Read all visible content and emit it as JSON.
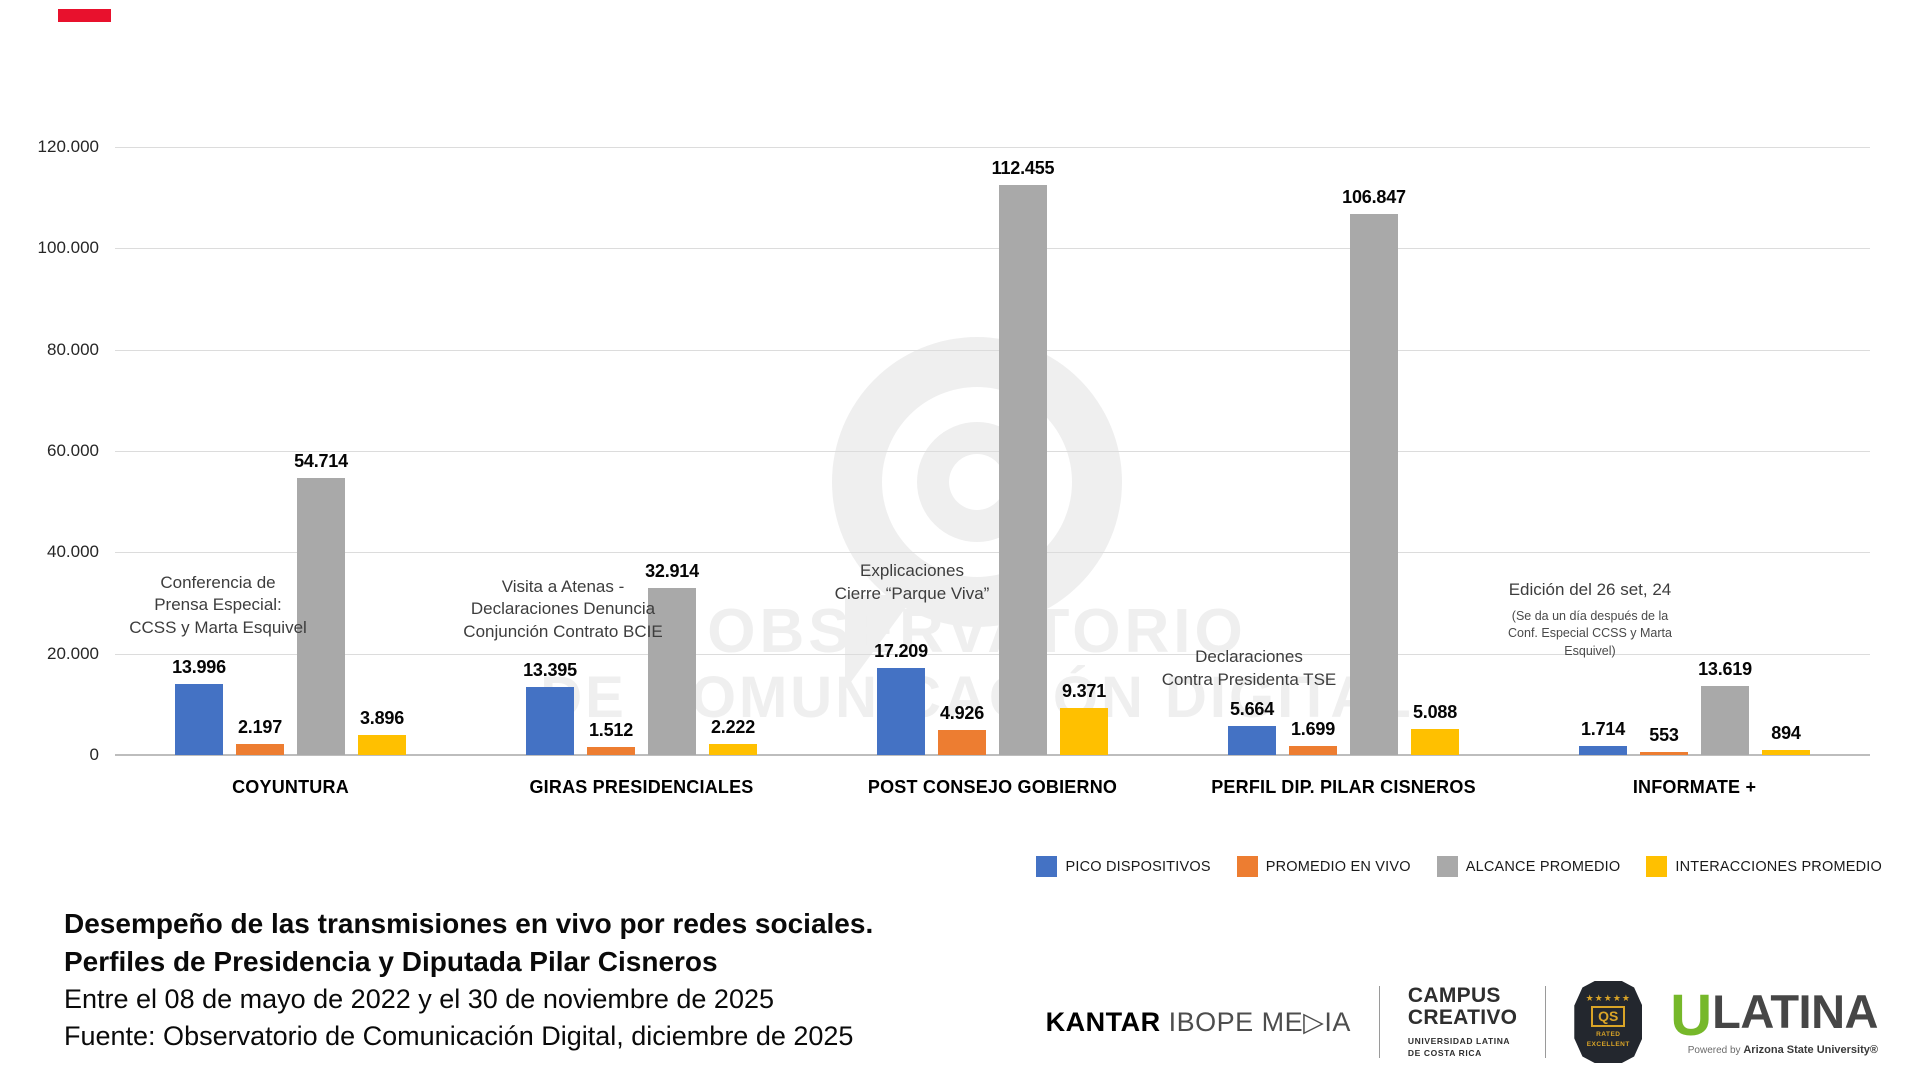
{
  "accent": {
    "marker_color": "#E8112D"
  },
  "chart_data": {
    "type": "bar",
    "categories": [
      "COYUNTURA",
      "GIRAS PRESIDENCIALES",
      "POST CONSEJO GOBIERNO",
      "PERFIL DIP. PILAR CISNEROS",
      "INFORMATE +"
    ],
    "series": [
      {
        "name": "PICO DISPOSITIVOS",
        "color": "#4472C4",
        "values": [
          13996,
          13395,
          17209,
          5664,
          1714
        ]
      },
      {
        "name": "PROMEDIO EN VIVO",
        "color": "#ED7D31",
        "values": [
          2197,
          1512,
          4926,
          1699,
          553
        ]
      },
      {
        "name": "ALCANCE PROMEDIO",
        "color": "#A9A9A9",
        "values": [
          54714,
          32914,
          112455,
          106847,
          13619
        ]
      },
      {
        "name": "INTERACCIONES PROMEDIO",
        "color": "#FFC000",
        "values": [
          3896,
          2222,
          9371,
          5088,
          894
        ]
      }
    ],
    "value_labels": [
      "13.996",
      "2.197",
      "54.714",
      "3.896",
      "13.395",
      "1.512",
      "32.914",
      "2.222",
      "17.209",
      "4.926",
      "112.455",
      "9.371",
      "5.664",
      "1.699",
      "106.847",
      "5.088",
      "1.714",
      "553",
      "13.619",
      "894"
    ],
    "ylim": [
      0,
      120000
    ],
    "ytick_step": 20000,
    "ytick_labels": [
      "0",
      "20.000",
      "40.000",
      "60.000",
      "80.000",
      "100.000",
      "120.000"
    ],
    "grid": true,
    "legend_position": "bottom-right",
    "annotations": [
      {
        "group": 0,
        "text": "Conferencia de\nPrensa Especial:\nCCSS y Marta Esquivel"
      },
      {
        "group": 1,
        "text": "Visita a Atenas -\nDeclaraciones Denuncia\nConjunción Contrato BCIE"
      },
      {
        "group": 2,
        "text": "Explicaciones\nCierre “Parque Viva”"
      },
      {
        "group": 3,
        "text": "Declaraciones\nContra Presidenta TSE"
      },
      {
        "group": 4,
        "text": "Edición del 26 set, 24",
        "subtext": "(Se da un día después de la\nConf. Especial CCSS y Marta\nEsquivel)"
      }
    ]
  },
  "watermark": {
    "line1": "OBSERVATORIO",
    "line2": "DE COMUNICACIÓN DIGITAL"
  },
  "caption": {
    "title_line1": "Desempeño de las transmisiones en vivo por redes sociales.",
    "title_line2": "Perfiles de Presidencia y Diputada Pilar Cisneros",
    "subtitle": "Entre el 08 de mayo de 2022 y el 30 de noviembre de 2025",
    "source": "Fuente: Observatorio de Comunicación Digital, diciembre de 2025"
  },
  "footer": {
    "kantar_primary": "KANTAR",
    "kantar_secondary": "IBOPE ME▷IA",
    "campus_line1": "CAMPUS",
    "campus_line2": "CREATIVO",
    "campus_subline1": "UNIVERSIDAD LATINA",
    "campus_subline2": "DE COSTA RICA",
    "qs_stars": "★★★★★",
    "qs_initials": "QS",
    "qs_rated_line1": "RATED",
    "qs_rated_line2": "EXCELLENT",
    "ulatina_u": "U",
    "ulatina_name": "LATINA",
    "ulatina_powered_prefix": "Powered by ",
    "ulatina_powered_brand": "Arizona State University®"
  }
}
